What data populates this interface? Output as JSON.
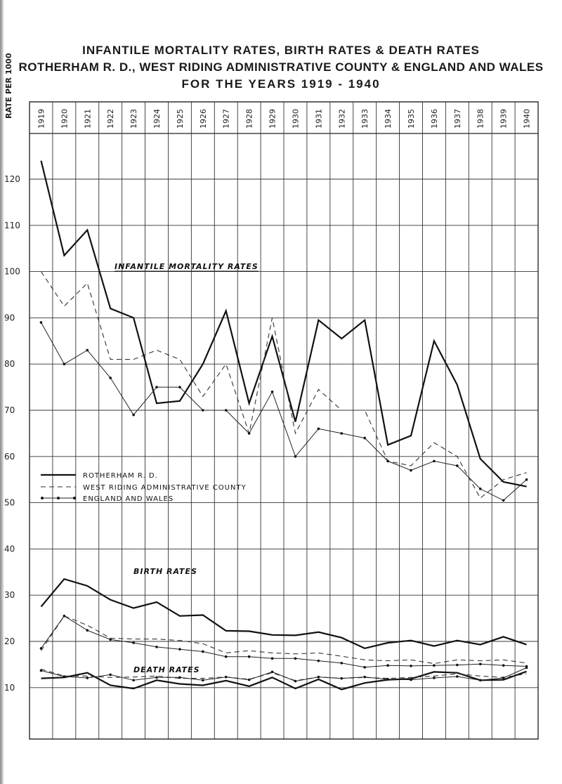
{
  "titles": {
    "line1": "INFANTILE MORTALITY RATES, BIRTH RATES & DEATH RATES",
    "line2": "ROTHERHAM R. D., WEST RIDING ADMINISTRATIVE COUNTY & ENGLAND AND WALES",
    "line3": "FOR THE YEARS 1919 - 1940"
  },
  "chart_data": {
    "type": "line",
    "y_axis_label": "RATE PER 1000",
    "ylim": [
      0,
      130
    ],
    "y_ticks": [
      "120",
      "110",
      "100",
      "90",
      "80",
      "70",
      "60",
      "50",
      "40",
      "30",
      "20",
      "10"
    ],
    "y_tick_values": [
      120,
      110,
      100,
      90,
      80,
      70,
      60,
      50,
      40,
      30,
      20,
      10
    ],
    "categories": [
      "1919",
      "1920",
      "1921",
      "1922",
      "1923",
      "1924",
      "1925",
      "1926",
      "1927",
      "1928",
      "1929",
      "1930",
      "1931",
      "1932",
      "1933",
      "1934",
      "1935",
      "1936",
      "1937",
      "1938",
      "1939",
      "1940"
    ],
    "grid": true,
    "annotations": {
      "infant": "INFANTILE MORTALITY RATES",
      "birth": "BIRTH RATES",
      "death": "DEATH RATES"
    },
    "legend": {
      "placement": "middle-left",
      "entries": [
        {
          "label": "ROTHERHAM R. D.",
          "style": "solid"
        },
        {
          "label": "WEST RIDING ADMINISTRATIVE COUNTY",
          "style": "dashed"
        },
        {
          "label": "ENGLAND AND WALES",
          "style": "dotted-marker"
        }
      ]
    },
    "series": [
      {
        "name": "ROTHERHAM R. D.",
        "group": "infant",
        "style": "solid",
        "values": [
          124,
          103.5,
          109,
          92,
          90,
          71.5,
          72,
          80,
          91.5,
          71.5,
          86,
          67.5,
          89.5,
          85.5,
          89.5,
          62.5,
          64.5,
          85,
          75.5,
          59.5,
          54.5,
          53.5
        ]
      },
      {
        "name": "WEST RIDING ADMINISTRATIVE COUNTY",
        "group": "infant",
        "style": "dashed",
        "values": [
          100,
          92.5,
          97.5,
          81,
          81,
          83,
          81,
          73,
          80,
          65,
          90,
          65,
          74.5,
          70,
          70,
          59,
          58,
          63,
          60,
          51,
          55,
          56.5
        ]
      },
      {
        "name": "ENGLAND AND WALES",
        "group": "infant",
        "style": "dotted-marker",
        "values": [
          89,
          80,
          83,
          77,
          69,
          75,
          75,
          70,
          70,
          65,
          74,
          60,
          66,
          65,
          64,
          59,
          57,
          59,
          58,
          53,
          50.5,
          55
        ]
      },
      {
        "name": "ROTHERHAM R. D.",
        "group": "birth",
        "style": "solid",
        "values": [
          27.5,
          33.5,
          32,
          29,
          27.2,
          28.5,
          25.5,
          25.7,
          22.3,
          22.2,
          21.4,
          21.3,
          22,
          20.8,
          18.5,
          19.7,
          20.2,
          19,
          20.2,
          19.3,
          21,
          19.3
        ]
      },
      {
        "name": "WEST RIDING ADMINISTRATIVE COUNTY",
        "group": "birth",
        "style": "dashed",
        "values": [
          18,
          25.5,
          23.5,
          20.7,
          20.5,
          20.5,
          20.2,
          19.5,
          17.5,
          18,
          17.5,
          17.3,
          17.5,
          16.8,
          16,
          15.8,
          16,
          15.2,
          16,
          15.8,
          16,
          15.3
        ]
      },
      {
        "name": "ENGLAND AND WALES",
        "group": "birth",
        "style": "dotted-marker",
        "values": [
          18.5,
          25.5,
          22.4,
          20.4,
          19.7,
          18.8,
          18.3,
          17.8,
          16.7,
          16.7,
          16.3,
          16.3,
          15.8,
          15.3,
          14.4,
          14.8,
          14.7,
          14.8,
          14.9,
          15.1,
          14.8,
          14.6
        ]
      },
      {
        "name": "ROTHERHAM R. D.",
        "group": "death",
        "style": "solid",
        "values": [
          12,
          12.2,
          13.2,
          10.5,
          9.8,
          11.6,
          10.8,
          10.5,
          11.5,
          10.3,
          12.2,
          9.8,
          11.8,
          9.6,
          11,
          11.7,
          11.9,
          13.4,
          13.2,
          11.6,
          11.7,
          13.5
        ]
      },
      {
        "name": "WEST RIDING ADMINISTRATIVE COUNTY",
        "group": "death",
        "style": "dashed",
        "values": [
          14,
          12.5,
          12.5,
          12.2,
          12.3,
          12.5,
          12,
          12,
          12.3,
          11.8,
          13.2,
          11.5,
          12.3,
          12,
          12.2,
          12,
          12.2,
          12.5,
          13,
          12.5,
          12.2,
          13
        ]
      },
      {
        "name": "ENGLAND AND WALES",
        "group": "death",
        "style": "dotted-marker",
        "values": [
          13.7,
          12.4,
          12.1,
          12.8,
          11.6,
          12.2,
          12.2,
          11.6,
          12.3,
          11.7,
          13.4,
          11.4,
          12.3,
          12,
          12.3,
          11.8,
          11.7,
          12.1,
          12.4,
          11.6,
          12.1,
          14.3
        ]
      }
    ]
  }
}
